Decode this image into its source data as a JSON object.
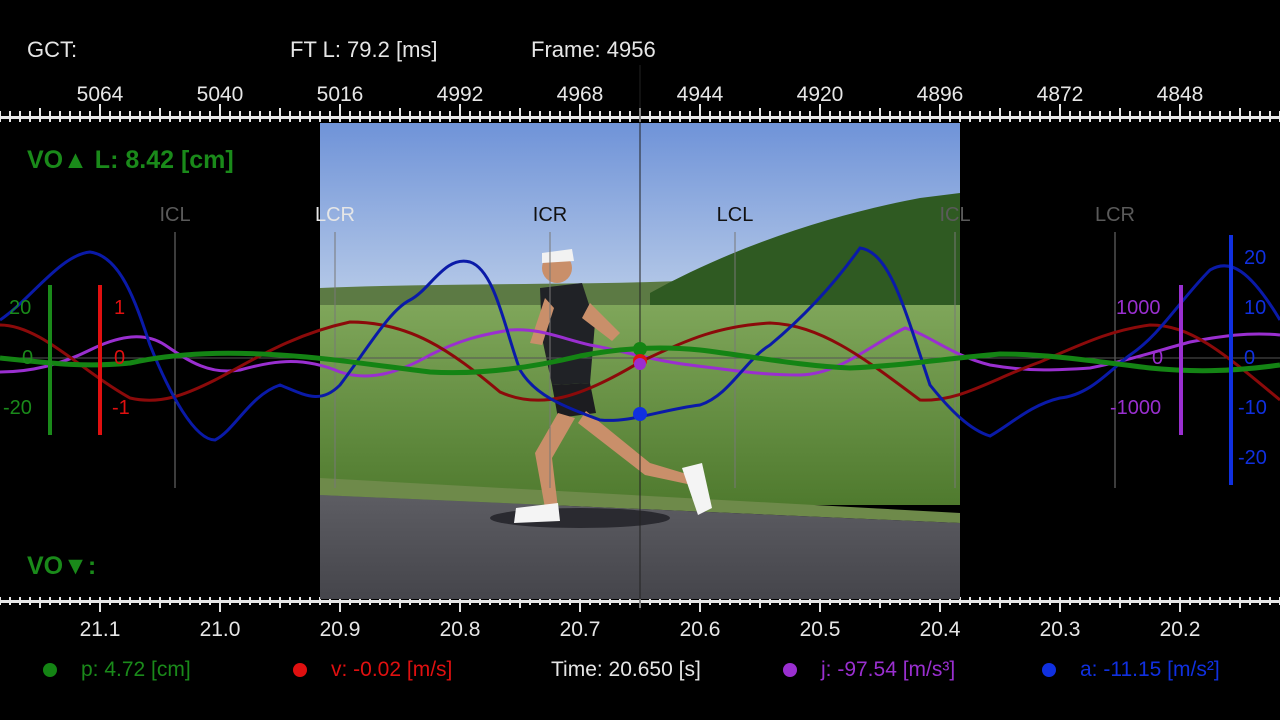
{
  "header": {
    "gct_label": "GCT:",
    "ft_label": "FT L: 79.2 [ms]",
    "frame_label": "Frame: 4956"
  },
  "frame_ticks": [
    "5064",
    "5040",
    "5016",
    "4992",
    "4968",
    "4944",
    "4920",
    "4896",
    "4872",
    "4848"
  ],
  "time_ticks": [
    "21.1",
    "21.0",
    "20.9",
    "20.8",
    "20.7",
    "20.6",
    "20.5",
    "20.4",
    "20.3",
    "20.2"
  ],
  "vo_up": "VO▲ L: 8.42 [cm]",
  "vo_down": "VO▼:",
  "events": [
    "ICL",
    "LCR",
    "ICR",
    "LCL",
    "ICL",
    "LCR"
  ],
  "axes": {
    "green": [
      "20",
      "0",
      "-20"
    ],
    "red": [
      "1",
      "0",
      "-1"
    ],
    "purple": [
      "1000",
      "0",
      "-1000"
    ],
    "blue": [
      "20",
      "10",
      "0",
      "-10",
      "-20"
    ]
  },
  "legend": {
    "p": "p: 4.72 [cm]",
    "v": "v: -0.02 [m/s]",
    "time": "Time: 20.650 [s]",
    "j": "j: -97.54 [m/s³]",
    "a": "a: -11.15 [m/s²]"
  },
  "colors": {
    "position": "#148414",
    "velocity": "#8b0a0a",
    "jerk": "#9a2fd0",
    "acceleration": "#0a1aa8",
    "vo": "#1a8a1a"
  },
  "video": {
    "subject": "runner on road with wheat field and forest"
  }
}
